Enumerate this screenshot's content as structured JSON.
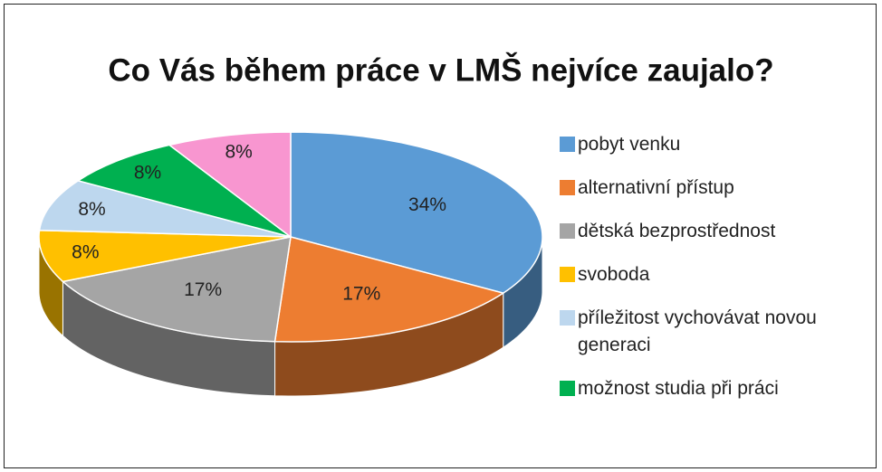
{
  "chart_data": {
    "type": "pie",
    "title": "Co Vás během práce v LMŠ nejvíce zaujalo?",
    "categories": [
      "pobyt venku",
      "alternativní přístup",
      "dětská bezprostřednost",
      "svoboda",
      "příležitost vychovávat novou generaci",
      "možnost studia při práci",
      null
    ],
    "values": [
      34,
      17,
      17,
      8,
      8,
      8,
      8
    ],
    "value_labels": [
      "34%",
      "17%",
      "17%",
      "8%",
      "8%",
      "8%",
      "8%"
    ],
    "colors": [
      "#5b9bd5",
      "#ed7d31",
      "#a5a5a5",
      "#ffc000",
      "#bdd7ee",
      "#00b050",
      "#f896d0"
    ],
    "legend": "right"
  }
}
